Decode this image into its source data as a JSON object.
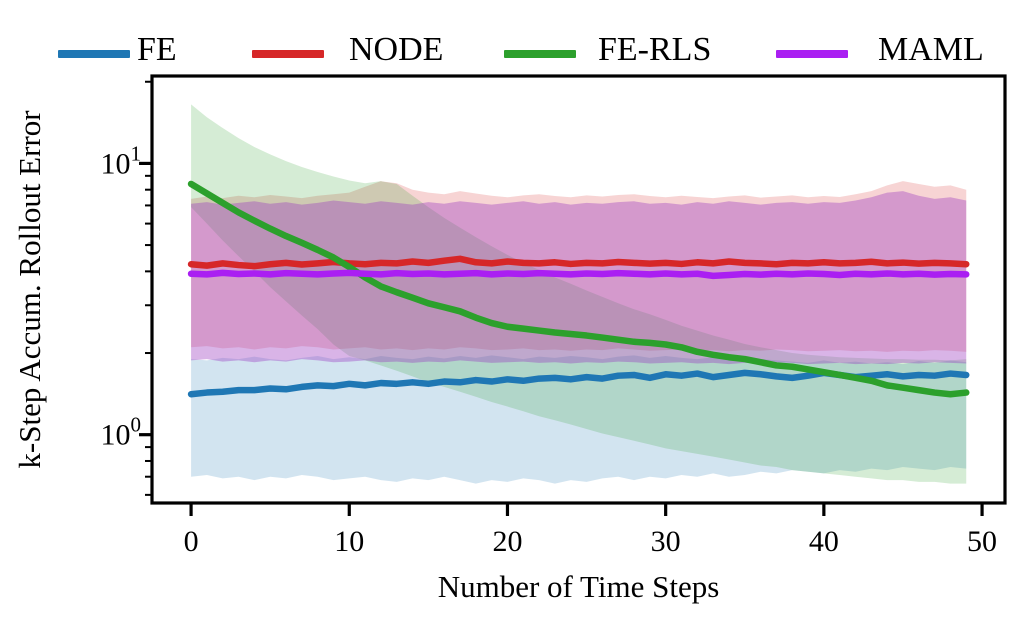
{
  "figure": {
    "background": "#ffffff",
    "text_color": "#000000"
  },
  "chart_data": {
    "type": "line",
    "title": "",
    "xlabel": "Number of Time Steps",
    "ylabel": "k-Step Accum. Rollout Error",
    "legend_position": "top",
    "grid": false,
    "axes": {
      "xlim": [
        -2.47,
        51.45
      ],
      "ylim": [
        0.56,
        21
      ],
      "yscale": "log",
      "x_ticks": [
        0,
        10,
        20,
        30,
        40,
        50
      ],
      "y_major_ticks": [
        {
          "value": 10,
          "base": "10",
          "exponent": "1"
        },
        {
          "value": 1,
          "base": "10",
          "exponent": "0"
        }
      ],
      "y_minor_ticks": [
        0.6,
        0.7,
        0.8,
        0.9,
        2,
        3,
        4,
        5,
        6,
        7,
        8,
        9,
        20
      ]
    },
    "x": [
      0,
      1,
      2,
      3,
      4,
      5,
      6,
      7,
      8,
      9,
      10,
      11,
      12,
      13,
      14,
      15,
      16,
      17,
      18,
      19,
      20,
      21,
      22,
      23,
      24,
      25,
      26,
      27,
      28,
      29,
      30,
      31,
      32,
      33,
      34,
      35,
      36,
      37,
      38,
      39,
      40,
      41,
      42,
      43,
      44,
      45,
      46,
      47,
      48,
      49
    ],
    "series": [
      {
        "name": "FE",
        "color": "#1f77b4",
        "band_alpha": 0.2,
        "values": [
          1.41,
          1.43,
          1.44,
          1.46,
          1.46,
          1.48,
          1.47,
          1.5,
          1.52,
          1.51,
          1.54,
          1.52,
          1.55,
          1.54,
          1.56,
          1.54,
          1.57,
          1.56,
          1.59,
          1.57,
          1.6,
          1.58,
          1.61,
          1.62,
          1.6,
          1.63,
          1.61,
          1.65,
          1.66,
          1.62,
          1.67,
          1.65,
          1.68,
          1.63,
          1.66,
          1.69,
          1.67,
          1.64,
          1.62,
          1.65,
          1.69,
          1.66,
          1.63,
          1.65,
          1.67,
          1.64,
          1.66,
          1.65,
          1.68,
          1.66
        ],
        "band_upper": [
          1.9,
          1.88,
          1.92,
          1.9,
          1.94,
          1.9,
          1.88,
          1.92,
          1.95,
          1.9,
          1.93,
          1.9,
          1.95,
          1.92,
          1.9,
          1.94,
          1.91,
          1.95,
          1.92,
          1.96,
          1.93,
          1.9,
          1.94,
          1.92,
          1.95,
          1.93,
          1.9,
          1.94,
          1.96,
          1.92,
          1.95,
          1.92,
          1.9,
          1.93,
          1.91,
          1.94,
          1.9,
          1.88,
          1.86,
          1.84,
          1.88,
          1.84,
          1.86,
          1.83,
          1.85,
          1.82,
          1.87,
          1.84,
          1.88,
          1.85
        ],
        "band_lower": [
          0.7,
          0.71,
          0.69,
          0.7,
          0.68,
          0.7,
          0.69,
          0.71,
          0.7,
          0.68,
          0.69,
          0.7,
          0.68,
          0.67,
          0.69,
          0.68,
          0.7,
          0.68,
          0.66,
          0.68,
          0.67,
          0.69,
          0.68,
          0.66,
          0.68,
          0.67,
          0.69,
          0.7,
          0.68,
          0.7,
          0.69,
          0.71,
          0.7,
          0.72,
          0.7,
          0.71,
          0.73,
          0.72,
          0.74,
          0.73,
          0.72,
          0.74,
          0.73,
          0.75,
          0.74,
          0.76,
          0.75,
          0.74,
          0.76,
          0.75
        ]
      },
      {
        "name": "NODE",
        "color": "#d62728",
        "band_alpha": 0.2,
        "values": [
          4.25,
          4.2,
          4.28,
          4.22,
          4.18,
          4.25,
          4.3,
          4.24,
          4.28,
          4.33,
          4.28,
          4.25,
          4.3,
          4.28,
          4.35,
          4.3,
          4.38,
          4.45,
          4.32,
          4.28,
          4.35,
          4.3,
          4.28,
          4.32,
          4.26,
          4.3,
          4.28,
          4.33,
          4.3,
          4.27,
          4.3,
          4.26,
          4.32,
          4.28,
          4.35,
          4.3,
          4.28,
          4.25,
          4.3,
          4.28,
          4.32,
          4.28,
          4.3,
          4.34,
          4.28,
          4.31,
          4.27,
          4.3,
          4.28,
          4.25
        ],
        "band_upper": [
          7.4,
          7.55,
          7.45,
          7.6,
          7.5,
          7.65,
          7.55,
          7.45,
          7.6,
          7.7,
          7.8,
          8.2,
          8.6,
          8.45,
          8.0,
          7.8,
          7.7,
          7.9,
          7.75,
          7.6,
          7.5,
          7.62,
          7.7,
          7.58,
          7.5,
          7.62,
          7.55,
          7.65,
          7.7,
          7.58,
          7.5,
          7.6,
          7.52,
          7.45,
          7.55,
          7.62,
          7.48,
          7.55,
          7.62,
          7.5,
          7.58,
          7.52,
          7.7,
          7.9,
          8.3,
          8.6,
          8.4,
          8.2,
          8.3,
          8.0
        ],
        "band_lower": [
          2.1,
          2.12,
          2.08,
          2.1,
          2.06,
          2.1,
          2.08,
          2.12,
          2.1,
          2.06,
          2.08,
          2.1,
          2.06,
          2.08,
          2.05,
          2.08,
          2.06,
          2.1,
          2.08,
          2.05,
          2.06,
          2.08,
          2.05,
          2.06,
          2.04,
          2.06,
          2.05,
          2.08,
          2.06,
          2.04,
          2.05,
          2.06,
          2.04,
          2.05,
          2.03,
          2.05,
          2.04,
          2.06,
          2.05,
          2.03,
          2.04,
          2.05,
          2.03,
          2.04,
          2.02,
          2.04,
          2.03,
          2.05,
          2.04,
          2.02
        ]
      },
      {
        "name": "FE-RLS",
        "color": "#2ca02c",
        "band_alpha": 0.2,
        "values": [
          8.4,
          7.75,
          7.15,
          6.6,
          6.15,
          5.75,
          5.4,
          5.1,
          4.8,
          4.5,
          4.15,
          3.8,
          3.52,
          3.35,
          3.2,
          3.05,
          2.95,
          2.85,
          2.7,
          2.58,
          2.5,
          2.46,
          2.42,
          2.38,
          2.35,
          2.32,
          2.28,
          2.24,
          2.2,
          2.18,
          2.15,
          2.1,
          2.02,
          1.97,
          1.93,
          1.9,
          1.85,
          1.8,
          1.78,
          1.74,
          1.7,
          1.66,
          1.62,
          1.58,
          1.52,
          1.49,
          1.46,
          1.43,
          1.41,
          1.43
        ],
        "band_upper": [
          16.5,
          14.8,
          13.5,
          12.4,
          11.5,
          10.8,
          10.2,
          9.7,
          9.3,
          8.95,
          8.65,
          8.45,
          8.6,
          8.4,
          7.6,
          6.9,
          6.3,
          5.8,
          5.35,
          4.95,
          4.6,
          4.3,
          4.05,
          3.8,
          3.6,
          3.4,
          3.22,
          3.05,
          2.9,
          2.78,
          2.65,
          2.52,
          2.42,
          2.32,
          2.24,
          2.16,
          2.1,
          2.05,
          2.0,
          1.97,
          1.95,
          1.93,
          1.92,
          1.91,
          1.9,
          1.9,
          1.89,
          1.89,
          1.88,
          1.9
        ],
        "band_lower": [
          6.9,
          6.0,
          5.2,
          4.55,
          4.0,
          3.5,
          3.1,
          2.75,
          2.45,
          2.15,
          1.95,
          1.88,
          1.8,
          1.72,
          1.64,
          1.56,
          1.5,
          1.44,
          1.38,
          1.32,
          1.27,
          1.22,
          1.17,
          1.13,
          1.09,
          1.05,
          1.01,
          0.98,
          0.95,
          0.92,
          0.89,
          0.87,
          0.85,
          0.83,
          0.81,
          0.79,
          0.77,
          0.76,
          0.74,
          0.73,
          0.72,
          0.71,
          0.7,
          0.69,
          0.68,
          0.68,
          0.67,
          0.67,
          0.66,
          0.66
        ]
      },
      {
        "name": "MAML",
        "color": "#aa1ff2",
        "band_color": "#9b3ac0",
        "band_alpha": 0.38,
        "values": [
          3.92,
          3.9,
          3.95,
          3.91,
          3.93,
          3.9,
          3.94,
          3.92,
          3.9,
          3.93,
          3.95,
          3.92,
          3.9,
          3.94,
          3.91,
          3.93,
          3.9,
          3.92,
          3.94,
          3.9,
          3.93,
          3.91,
          3.94,
          3.92,
          3.9,
          3.93,
          3.91,
          3.94,
          3.92,
          3.9,
          3.93,
          3.9,
          3.92,
          3.85,
          3.88,
          3.91,
          3.89,
          3.92,
          3.9,
          3.93,
          3.91,
          3.88,
          3.92,
          3.9,
          3.93,
          3.9,
          3.92,
          3.89,
          3.91,
          3.9
        ],
        "band_upper": [
          7.1,
          7.2,
          7.05,
          7.15,
          7.25,
          7.1,
          7.2,
          7.05,
          7.15,
          7.3,
          7.2,
          7.1,
          7.25,
          7.15,
          7.05,
          7.2,
          7.1,
          7.25,
          7.15,
          7.05,
          7.15,
          7.25,
          7.1,
          7.2,
          7.05,
          7.15,
          7.1,
          7.2,
          7.25,
          7.1,
          7.15,
          7.05,
          7.2,
          7.1,
          7.25,
          7.15,
          7.05,
          7.15,
          7.2,
          7.1,
          7.2,
          7.15,
          7.3,
          7.5,
          7.8,
          7.9,
          7.6,
          7.4,
          7.5,
          7.3
        ],
        "band_lower": [
          1.88,
          1.9,
          1.86,
          1.88,
          1.85,
          1.88,
          1.86,
          1.9,
          1.88,
          1.85,
          1.86,
          1.88,
          1.85,
          1.86,
          1.84,
          1.86,
          1.85,
          1.88,
          1.86,
          1.84,
          1.85,
          1.86,
          1.84,
          1.85,
          1.83,
          1.85,
          1.84,
          1.86,
          1.85,
          1.83,
          1.84,
          1.85,
          1.83,
          1.84,
          1.82,
          1.84,
          1.83,
          1.85,
          1.84,
          1.82,
          1.83,
          1.84,
          1.82,
          1.83,
          1.82,
          1.84,
          1.83,
          1.85,
          1.84,
          1.83
        ]
      }
    ]
  }
}
